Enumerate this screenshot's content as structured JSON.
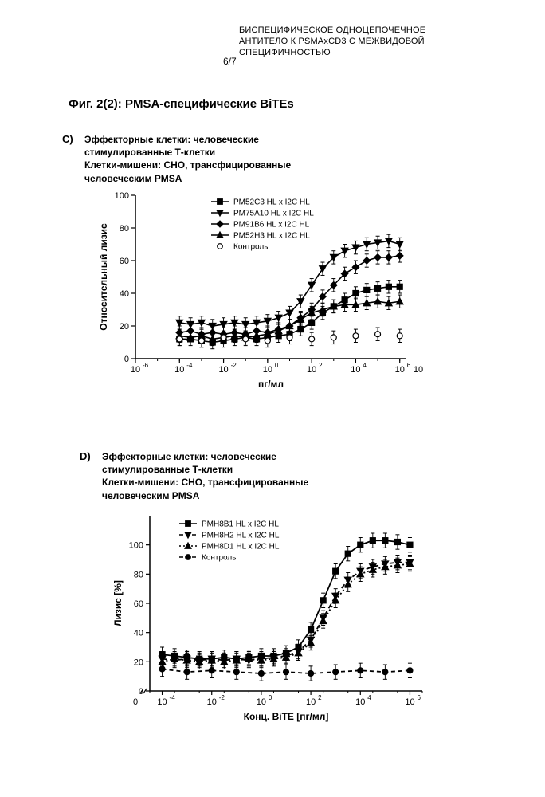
{
  "header": {
    "line1": "БИСПЕЦИФИЧЕСКОЕ ОДНОЦЕПОЧЕЧНОЕ",
    "line2": "АНТИТЕЛО К PSMAxCD3 С МЕЖВИДОВОЙ",
    "line3": "СПЕЦИФИЧНОСТЬЮ",
    "page": "6/7"
  },
  "figure_title": "Фиг. 2(2): PMSA-специфические BiTEs",
  "panel_c": {
    "label": "C)",
    "desc_l1": "Эффекторные клетки: человеческие",
    "desc_l2": "стимулированные Т-клетки",
    "desc_l3": "Клетки-мишени: CHO, трансфицированные",
    "desc_l4": "человеческим PMSA",
    "chart": {
      "type": "line-scatter",
      "ylabel": "Относительный лизис",
      "xlabel": "пг/мл",
      "ylim": [
        0,
        100
      ],
      "yticks": [
        0,
        20,
        40,
        60,
        80,
        100
      ],
      "xlim_exp": [
        -6,
        6.3
      ],
      "xticks_exp": [
        -6,
        -4,
        -2,
        0,
        2,
        4,
        6
      ],
      "xtick_extra": "10",
      "legend": [
        {
          "label": "PM52C3 HL x I2C HL",
          "marker": "square",
          "line": "solid"
        },
        {
          "label": "PM75A10 HL x I2C HL",
          "marker": "tri-down",
          "line": "solid"
        },
        {
          "label": "PM91B6 HL x I2C HL",
          "marker": "diamond",
          "line": "solid"
        },
        {
          "label": "PM52H3 HL x I2C HL",
          "marker": "tri-up",
          "line": "solid"
        },
        {
          "label": "Контроль",
          "marker": "circle-open",
          "line": "none"
        }
      ],
      "series": [
        {
          "name": "PM52C3",
          "marker": "square",
          "color": "#000000",
          "x_exp": [
            -4,
            -3.5,
            -3,
            -2.5,
            -2,
            -1.5,
            -1,
            -0.5,
            0,
            0.5,
            1,
            1.5,
            2,
            2.5,
            3,
            3.5,
            4,
            4.5,
            5,
            5.5,
            6
          ],
          "y": [
            12,
            12,
            11,
            10,
            11,
            12,
            13,
            12,
            13,
            14,
            15,
            18,
            22,
            28,
            32,
            36,
            40,
            42,
            43,
            44,
            44
          ]
        },
        {
          "name": "PM75A10",
          "marker": "tri-down",
          "color": "#000000",
          "x_exp": [
            -4,
            -3.5,
            -3,
            -2.5,
            -2,
            -1.5,
            -1,
            -0.5,
            0,
            0.5,
            1,
            1.5,
            2,
            2.5,
            3,
            3.5,
            4,
            4.5,
            5,
            5.5,
            6
          ],
          "y": [
            22,
            21,
            22,
            20,
            21,
            22,
            21,
            22,
            23,
            25,
            28,
            35,
            45,
            55,
            62,
            66,
            68,
            70,
            71,
            72,
            70
          ]
        },
        {
          "name": "PM91B6",
          "marker": "diamond",
          "color": "#000000",
          "x_exp": [
            -4,
            -3.5,
            -3,
            -2.5,
            -2,
            -1.5,
            -1,
            -0.5,
            0,
            0.5,
            1,
            1.5,
            2,
            2.5,
            3,
            3.5,
            4,
            4.5,
            5,
            5.5,
            6
          ],
          "y": [
            16,
            17,
            15,
            16,
            15,
            16,
            15,
            17,
            16,
            18,
            20,
            25,
            30,
            38,
            45,
            52,
            56,
            60,
            62,
            62,
            63
          ]
        },
        {
          "name": "PM52H3",
          "marker": "tri-up",
          "color": "#000000",
          "x_exp": [
            -4,
            -3.5,
            -3,
            -2.5,
            -2,
            -1.5,
            -1,
            -0.5,
            0,
            0.5,
            1,
            1.5,
            2,
            2.5,
            3,
            3.5,
            4,
            4.5,
            5,
            5.5,
            6
          ],
          "y": [
            14,
            13,
            14,
            12,
            13,
            14,
            13,
            14,
            15,
            17,
            20,
            24,
            28,
            30,
            32,
            33,
            33,
            34,
            35,
            34,
            35
          ]
        },
        {
          "name": "Контроль",
          "marker": "circle-open",
          "color": "#000000",
          "x_exp": [
            -4,
            -3,
            -2,
            -1,
            0,
            1,
            2,
            3,
            4,
            5,
            6
          ],
          "y": [
            12,
            11,
            13,
            12,
            11,
            13,
            12,
            13,
            14,
            15,
            14
          ]
        }
      ],
      "err": 4,
      "bg": "#ffffff",
      "axis_color": "#000000",
      "line_width": 1.6,
      "marker_size": 3.5,
      "tick_fontsize": 11,
      "label_fontsize": 12,
      "legend_fontsize": 10
    }
  },
  "panel_d": {
    "label": "D)",
    "desc_l1": "Эффекторные клетки: человеческие",
    "desc_l2": "стимулированные Т-клетки",
    "desc_l3": "Клетки-мишени: CHO, трансфицированные",
    "desc_l4": "человеческим PMSA",
    "chart": {
      "type": "line-scatter",
      "ylabel": "Лизис [%]",
      "xlabel": "Конц. BiTE [пг/мл]",
      "ylim": [
        0,
        120
      ],
      "yticks": [
        0,
        20,
        40,
        60,
        80,
        100
      ],
      "xlim_exp": [
        -4.5,
        6.5
      ],
      "xticks_exp": [
        -4,
        -2,
        0,
        2,
        4,
        6
      ],
      "xtick_zero": "0",
      "legend": [
        {
          "label": "PMH8B1 HL x I2C HL",
          "marker": "square",
          "line": "solid"
        },
        {
          "label": "PMH8H2 HL x I2C HL",
          "marker": "tri-down",
          "line": "dash"
        },
        {
          "label": "PMH8D1 HL x I2C HL",
          "marker": "tri-up",
          "line": "dot"
        },
        {
          "label": "Контроль",
          "marker": "circle",
          "line": "dash"
        }
      ],
      "series": [
        {
          "name": "PMH8B1",
          "marker": "square",
          "dash": "",
          "color": "#000000",
          "x_exp": [
            -4,
            -3.5,
            -3,
            -2.5,
            -2,
            -1.5,
            -1,
            -0.5,
            0,
            0.5,
            1,
            1.5,
            2,
            2.5,
            3,
            3.5,
            4,
            4.5,
            5,
            5.5,
            6
          ],
          "y": [
            25,
            24,
            23,
            22,
            22,
            23,
            22,
            23,
            24,
            24,
            26,
            30,
            42,
            62,
            82,
            94,
            100,
            103,
            103,
            102,
            100
          ]
        },
        {
          "name": "PMH8H2",
          "marker": "tri-down",
          "dash": "6,4",
          "color": "#000000",
          "x_exp": [
            -4,
            -3.5,
            -3,
            -2.5,
            -2,
            -1.5,
            -1,
            -0.5,
            0,
            0.5,
            1,
            1.5,
            2,
            2.5,
            3,
            3.5,
            4,
            4.5,
            5,
            5.5,
            6
          ],
          "y": [
            22,
            21,
            22,
            21,
            22,
            21,
            22,
            21,
            22,
            23,
            24,
            27,
            35,
            50,
            65,
            76,
            82,
            85,
            87,
            88,
            88
          ]
        },
        {
          "name": "PMH8D1",
          "marker": "tri-up",
          "dash": "2,3",
          "color": "#000000",
          "x_exp": [
            -4,
            -3.5,
            -3,
            -2.5,
            -2,
            -1.5,
            -1,
            -0.5,
            0,
            0.5,
            1,
            1.5,
            2,
            2.5,
            3,
            3.5,
            4,
            4.5,
            5,
            5.5,
            6
          ],
          "y": [
            20,
            22,
            21,
            20,
            21,
            20,
            21,
            22,
            21,
            22,
            23,
            26,
            33,
            48,
            62,
            73,
            80,
            83,
            85,
            86,
            87
          ]
        },
        {
          "name": "Контроль",
          "marker": "circle",
          "dash": "5,4",
          "color": "#000000",
          "x_exp": [
            -4,
            -3,
            -2,
            -1,
            0,
            1,
            2,
            3,
            4,
            5,
            6
          ],
          "y": [
            15,
            13,
            14,
            13,
            12,
            13,
            12,
            13,
            14,
            13,
            14
          ]
        }
      ],
      "err": 5,
      "bg": "#ffffff",
      "axis_color": "#000000",
      "line_width": 1.8,
      "marker_size": 3.5,
      "tick_fontsize": 11,
      "label_fontsize": 12,
      "legend_fontsize": 10
    }
  }
}
